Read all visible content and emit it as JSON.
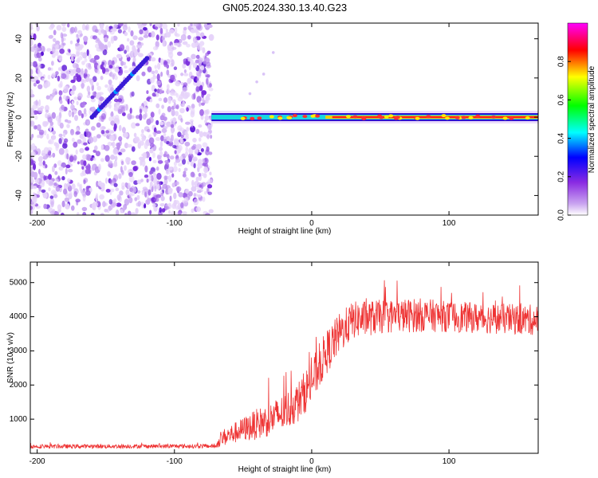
{
  "chart_data": [
    {
      "type": "heatmap",
      "title": "GN05.2024.330.13.40.G23",
      "xlabel": "Height of straight line (km)",
      "ylabel": "Frequency (Hz)",
      "xlim": [
        -205,
        165
      ],
      "ylim": [
        -50,
        48
      ],
      "x_ticks": [
        -200,
        -100,
        0,
        100
      ],
      "x_tick_labels": [
        "-200",
        "-100",
        "0",
        "100"
      ],
      "y_ticks": [
        -40,
        -20,
        0,
        20,
        40
      ],
      "y_tick_labels": [
        "-40",
        "-20",
        "0",
        "20",
        "40"
      ],
      "noise_region_x": [
        -205,
        -73
      ],
      "signal_track": {
        "x_start": -73,
        "x_end": 165,
        "frequency_hz": 0,
        "description": "narrow band near 0 Hz, amplitude rising from ~0.5 to ~1.0 after 0 km"
      },
      "diagonal_streak": {
        "x": [
          -160,
          -120
        ],
        "y": [
          0,
          30
        ]
      },
      "colorbar": {
        "label": "Normalized spectral amplitude",
        "range": [
          0.0,
          1.0
        ],
        "ticks": [
          0.0,
          0.2,
          0.4,
          0.6,
          0.8
        ],
        "tick_labels": [
          "0.0",
          "0.2",
          "0.4",
          "0.6",
          "0.8"
        ],
        "colors": [
          "#ffffff",
          "#8a2be2",
          "#0000ff",
          "#00ffff",
          "#00ff00",
          "#ffff00",
          "#ff0000",
          "#ff00ff"
        ]
      }
    },
    {
      "type": "line",
      "title": "",
      "xlabel": "Height of straight line (km)",
      "ylabel": "SNR (10 * v/v)",
      "xlim": [
        -205,
        165
      ],
      "ylim": [
        0,
        5600
      ],
      "x_ticks": [
        -200,
        -100,
        0,
        100
      ],
      "x_tick_labels": [
        "-200",
        "-100",
        "0",
        "100"
      ],
      "y_ticks": [
        1000,
        2000,
        3000,
        4000,
        5000
      ],
      "y_tick_labels": [
        "1000",
        "2000",
        "3000",
        "4000",
        "5000"
      ],
      "series": [
        {
          "name": "SNR",
          "color": "#ee3333",
          "trend_x": [
            -205,
            -70,
            -65,
            -50,
            -40,
            -30,
            -20,
            -10,
            0,
            10,
            20,
            30,
            50,
            80,
            100,
            130,
            165
          ],
          "trend_y": [
            200,
            210,
            450,
            700,
            850,
            1000,
            1200,
            1500,
            2100,
            2900,
            3500,
            3900,
            4000,
            4050,
            4000,
            3950,
            3900
          ],
          "noise_amplitude": [
            60,
            60,
            250,
            350,
            450,
            500,
            550,
            600,
            650,
            650,
            600,
            550,
            500,
            500,
            450,
            450,
            450
          ]
        }
      ]
    }
  ]
}
